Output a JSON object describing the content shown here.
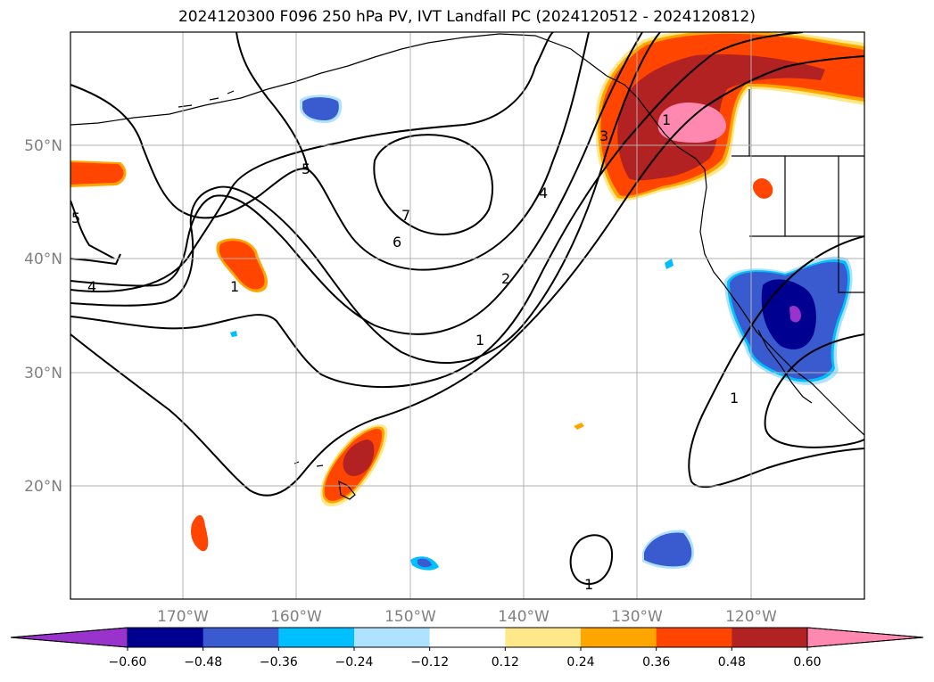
{
  "title": "2024120300 F096 250 hPa PV, IVT Landfall PC (2024120512 - 2024120812)",
  "map": {
    "lon_labels": [
      "170°W",
      "160°W",
      "150°W",
      "140°W",
      "130°W",
      "120°W"
    ],
    "lat_labels": [
      "50°N",
      "40°N",
      "30°N",
      "20°N"
    ],
    "pv_contour_labels": [
      "1",
      "1",
      "1",
      "1",
      "1",
      "2",
      "3",
      "4",
      "4",
      "5",
      "5",
      "6",
      "7"
    ]
  },
  "colorbar": {
    "ticks": [
      "−0.60",
      "−0.48",
      "−0.36",
      "−0.24",
      "−0.12",
      "0.12",
      "0.24",
      "0.36",
      "0.48",
      "0.60"
    ],
    "colors": {
      "under": "#9933cc",
      "bins": [
        "#000090",
        "#3a5bd0",
        "#00bfff",
        "#aee2ff",
        "#ffffff",
        "#ffe88a",
        "#ffa500",
        "#ff4500",
        "#b22222"
      ],
      "over": "#ff88b0"
    }
  }
}
